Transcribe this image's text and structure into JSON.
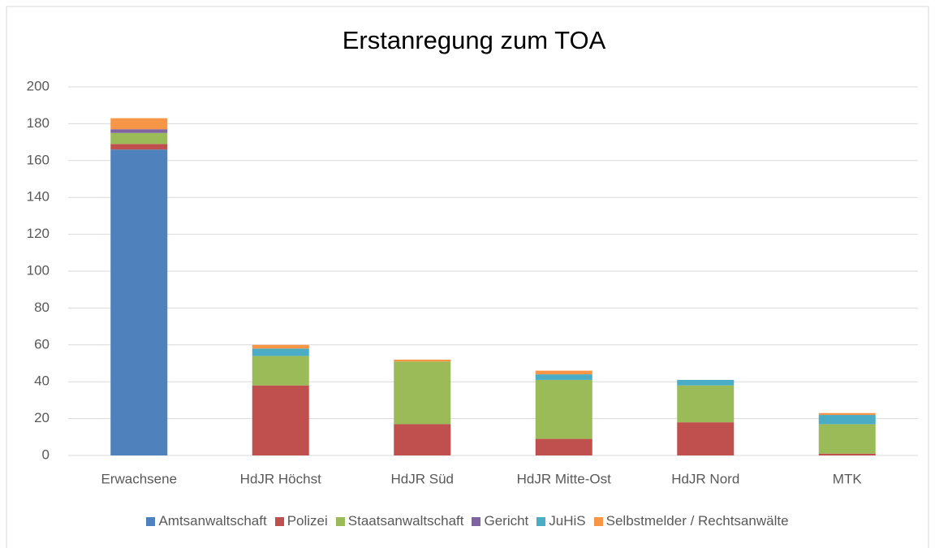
{
  "chart_data": {
    "type": "stacked_bar",
    "title": "Erstanregung zum TOA",
    "categories": [
      "Erwachsene",
      "HdJR Höchst",
      "HdJR Süd",
      "HdJR Mitte-Ost",
      "HdJR Nord",
      "MTK"
    ],
    "series": [
      {
        "name": "Amtsanwaltschaft",
        "color": "#4f81bd",
        "values": [
          166,
          0,
          0,
          0,
          0,
          0
        ]
      },
      {
        "name": "Polizei",
        "color": "#c0504d",
        "values": [
          3,
          38,
          17,
          9,
          18,
          1
        ]
      },
      {
        "name": "Staatsanwaltschaft",
        "color": "#9bbb59",
        "values": [
          6,
          16,
          34,
          32,
          20,
          16
        ]
      },
      {
        "name": "Gericht",
        "color": "#8064a2",
        "values": [
          2,
          0,
          0,
          0,
          0,
          0
        ]
      },
      {
        "name": "JuHiS",
        "color": "#4bacc6",
        "values": [
          0,
          4,
          0,
          3,
          3,
          5
        ]
      },
      {
        "name": "Selbstmelder / Rechtsanwälte",
        "color": "#f79646",
        "values": [
          6,
          2,
          1,
          2,
          0,
          1
        ]
      }
    ],
    "ylim": [
      0,
      200
    ],
    "yticks": [
      0,
      20,
      40,
      60,
      80,
      100,
      120,
      140,
      160,
      180,
      200
    ],
    "grid": true,
    "legend": "bottom"
  }
}
